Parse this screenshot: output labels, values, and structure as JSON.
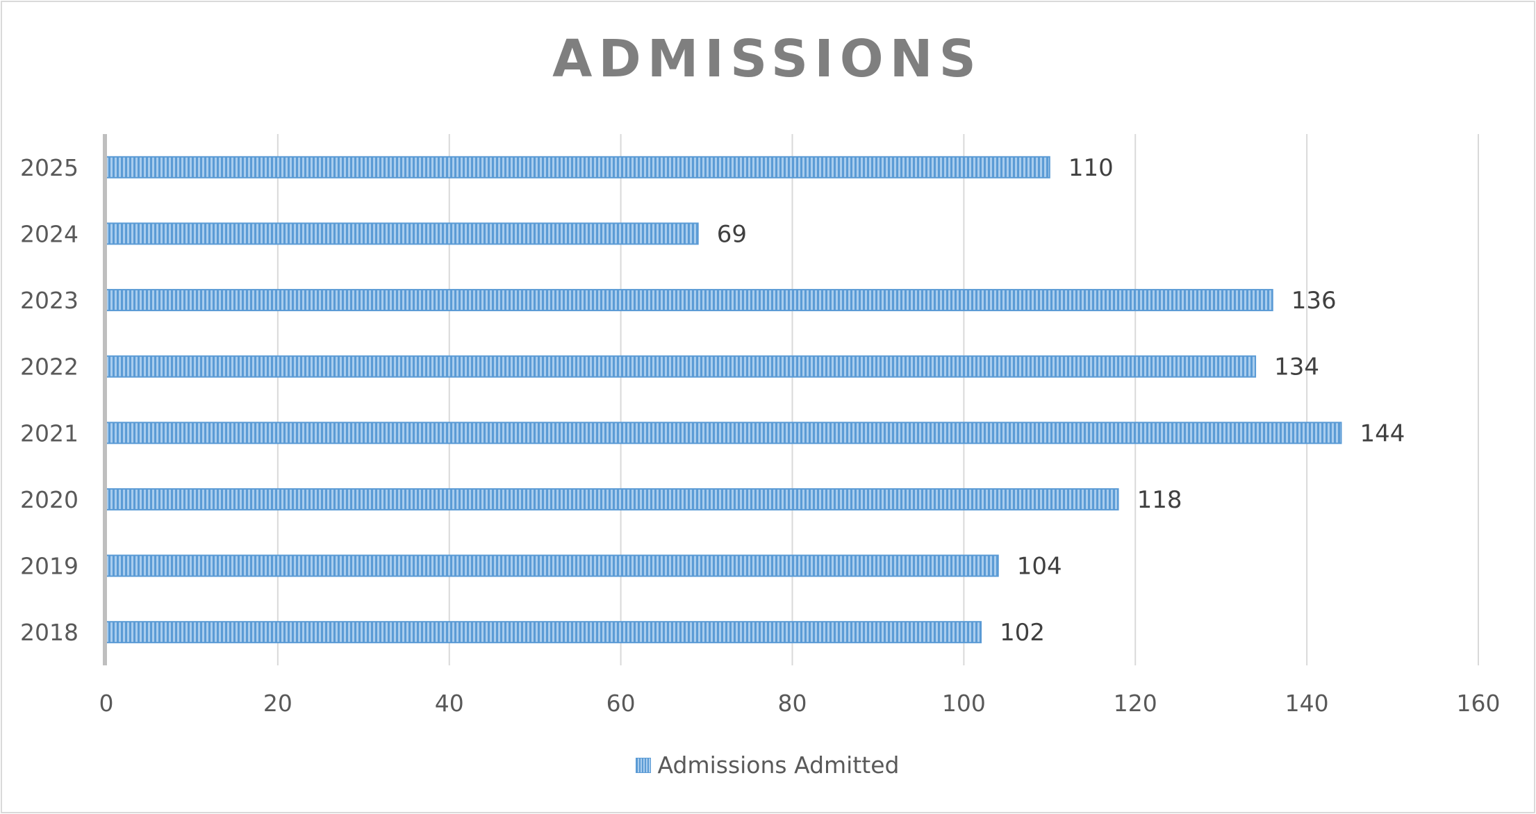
{
  "chart_data": {
    "type": "bar",
    "orientation": "horizontal",
    "title": "ADMISSIONS",
    "categories": [
      "2018",
      "2019",
      "2020",
      "2021",
      "2022",
      "2023",
      "2024",
      "2025"
    ],
    "series": [
      {
        "name": "Admissions Admitted",
        "values": [
          102,
          104,
          118,
          144,
          134,
          136,
          69,
          110
        ],
        "color": "#5b9bd5"
      }
    ],
    "xlim": [
      0,
      160
    ],
    "x_ticks": [
      "0",
      "20",
      "40",
      "60",
      "80",
      "100",
      "120",
      "140",
      "160"
    ],
    "xlabel": "",
    "ylabel": "",
    "grid": "vertical",
    "legend_position": "bottom",
    "data_labels": true
  }
}
